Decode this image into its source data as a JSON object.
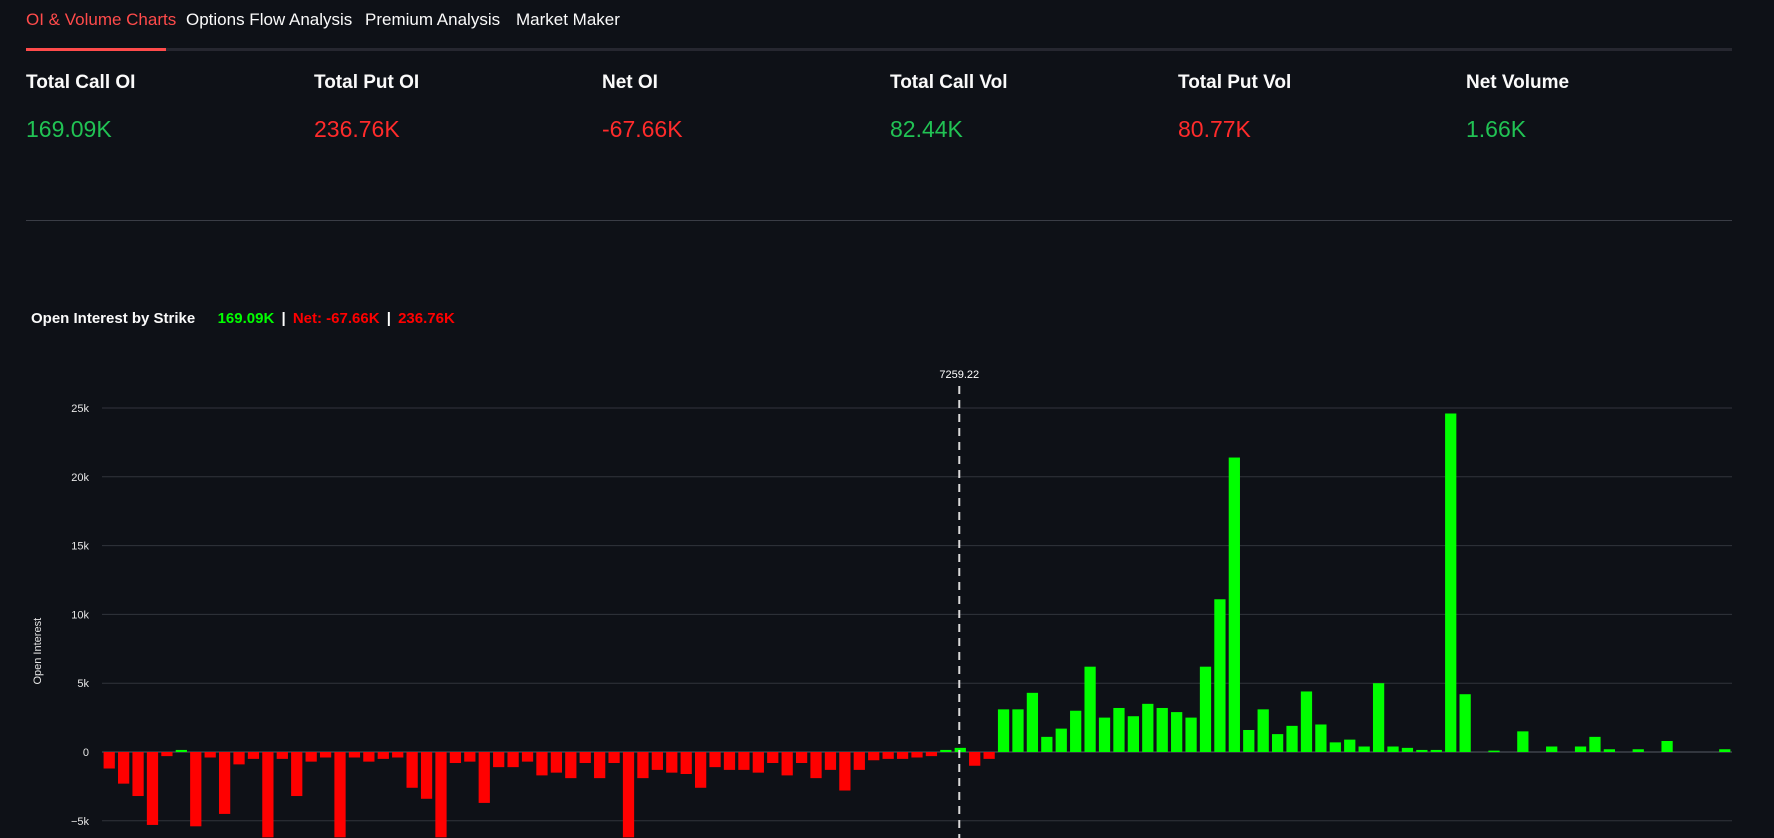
{
  "tabs": [
    {
      "label": "OI & Volume Charts",
      "active": true
    },
    {
      "label": "Options Flow Analysis",
      "active": false
    },
    {
      "label": "Premium Analysis",
      "active": false
    },
    {
      "label": "Market Maker",
      "active": false
    }
  ],
  "metrics": [
    {
      "label": "Total Call OI",
      "value": "169.09K",
      "color": "#21c354"
    },
    {
      "label": "Total Put OI",
      "value": "236.76K",
      "color": "#ff2b2b"
    },
    {
      "label": "Net OI",
      "value": "-67.66K",
      "color": "#ff2b2b"
    },
    {
      "label": "Total Call Vol",
      "value": "82.44K",
      "color": "#21c354"
    },
    {
      "label": "Total Put Vol",
      "value": "80.77K",
      "color": "#ff2b2b"
    },
    {
      "label": "Net Volume",
      "value": "1.66K",
      "color": "#21c354"
    }
  ],
  "chart_title": {
    "text": "Open Interest by Strike",
    "call": "169.09K",
    "sep1": "|",
    "net": "Net: -67.66K",
    "sep2": "|",
    "put": "236.76K",
    "call_color": "#00ff00",
    "put_color": "#ff0000"
  },
  "chart_data": {
    "type": "bar",
    "title": "Open Interest by Strike",
    "ylabel": "Open Interest",
    "xlabel": "",
    "ylim": [
      -6200,
      25000
    ],
    "yticks": [
      25000,
      20000,
      15000,
      10000,
      5000,
      0,
      -5000
    ],
    "ytick_labels": [
      "25k",
      "20k",
      "15k",
      "10k",
      "5k",
      "0",
      "−5k"
    ],
    "grid": true,
    "spot": {
      "label": "7259.22",
      "index": 59
    },
    "colors": {
      "positive": "#00ff00",
      "negative": "#ff0000"
    },
    "values": [
      -1200,
      -2300,
      -3200,
      -5300,
      -300,
      150,
      -5400,
      -400,
      -4500,
      -900,
      -500,
      -6200,
      -500,
      -3200,
      -700,
      -400,
      -6200,
      -400,
      -700,
      -500,
      -400,
      -2600,
      -3400,
      -6200,
      -800,
      -700,
      -3700,
      -1100,
      -1100,
      -700,
      -1700,
      -1500,
      -1900,
      -800,
      -1900,
      -800,
      -6200,
      -1900,
      -1300,
      -1500,
      -1600,
      -2600,
      -1100,
      -1300,
      -1300,
      -1500,
      -800,
      -1700,
      -800,
      -1900,
      -1300,
      -2800,
      -1300,
      -600,
      -500,
      -500,
      -400,
      -300,
      150,
      300,
      -1000,
      -500,
      3100,
      3100,
      4300,
      1100,
      1700,
      3000,
      6200,
      2500,
      3200,
      2600,
      3500,
      3200,
      2900,
      2500,
      6200,
      11100,
      21400,
      1600,
      3100,
      1300,
      1900,
      4400,
      2000,
      700,
      900,
      400,
      5000,
      400,
      300,
      150,
      150,
      24600,
      4200,
      0,
      100,
      0,
      1500,
      0,
      400,
      0,
      400,
      1100,
      200,
      0,
      200,
      0,
      800,
      0,
      0,
      0,
      200
    ]
  }
}
